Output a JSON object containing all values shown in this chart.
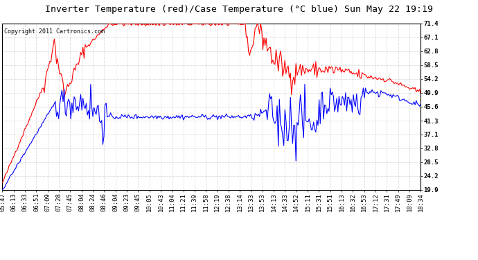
{
  "title": "Inverter Temperature (red)/Case Temperature (°C blue) Sun May 22 19:19",
  "copyright": "Copyright 2011 Cartronics.com",
  "yticks": [
    19.9,
    24.2,
    28.5,
    32.8,
    37.1,
    41.3,
    45.6,
    49.9,
    54.2,
    58.5,
    62.8,
    67.1,
    71.4
  ],
  "ymin": 19.9,
  "ymax": 71.4,
  "background_color": "#ffffff",
  "plot_bg_color": "#ffffff",
  "grid_color": "#b0b0b0",
  "title_fontsize": 9.5,
  "tick_fontsize": 6.5,
  "copyright_fontsize": 6.0,
  "x_labels": [
    "05:47",
    "06:13",
    "06:33",
    "06:51",
    "07:09",
    "07:28",
    "07:45",
    "08:04",
    "08:24",
    "08:46",
    "09:04",
    "09:23",
    "09:45",
    "10:05",
    "10:43",
    "11:04",
    "11:21",
    "11:39",
    "11:58",
    "12:19",
    "12:38",
    "13:14",
    "13:33",
    "13:53",
    "14:13",
    "14:33",
    "14:52",
    "15:11",
    "15:31",
    "15:51",
    "16:13",
    "16:32",
    "16:53",
    "17:12",
    "17:31",
    "17:49",
    "18:09",
    "18:34"
  ],
  "red_color": "#ff0000",
  "blue_color": "#0000ff",
  "line_width": 0.8
}
